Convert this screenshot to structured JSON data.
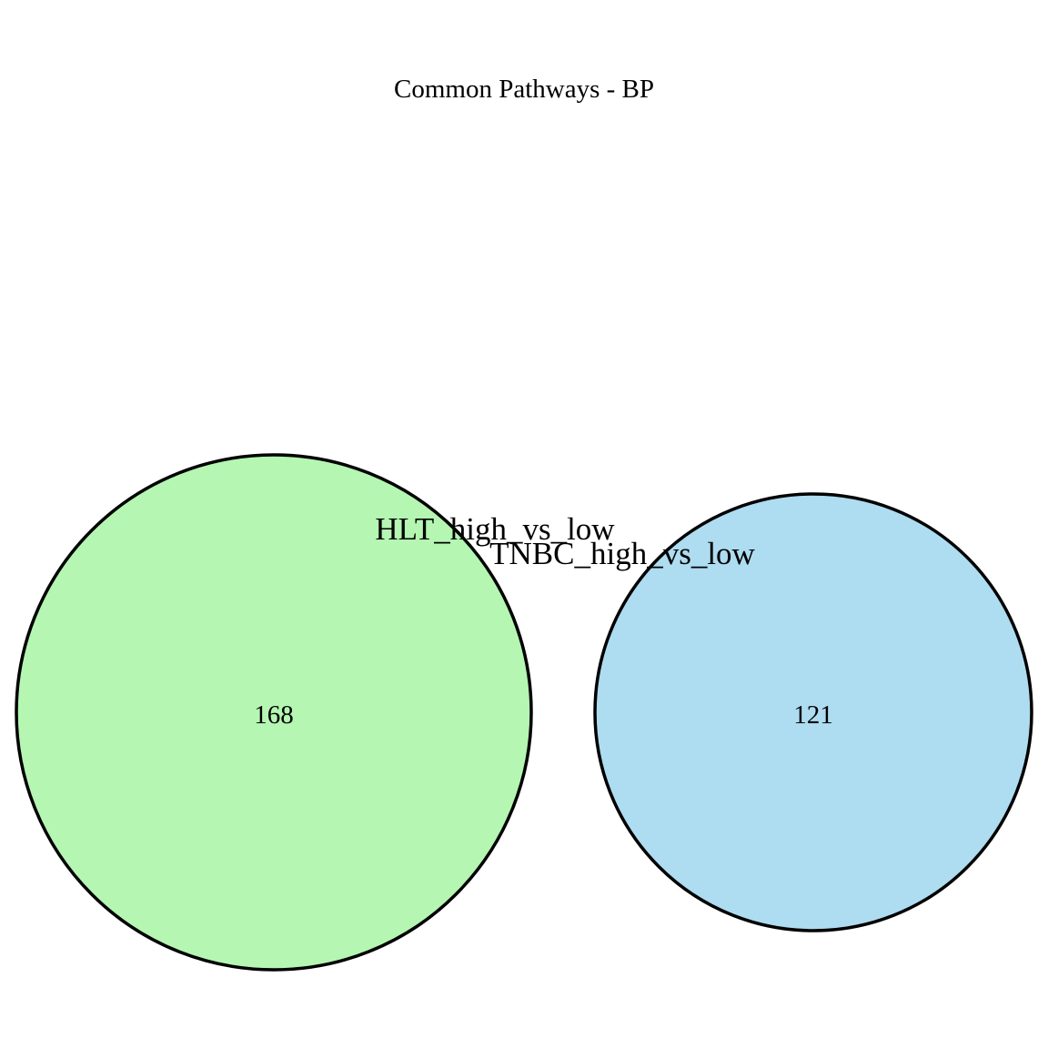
{
  "diagram": {
    "title": "Common Pathways - BP",
    "sets": [
      {
        "name": "HLT_high_vs_low",
        "count": "168",
        "fill": "#b4f6b2",
        "stroke": "#000000"
      },
      {
        "name": "TNBC_high_vs_low",
        "count": "121",
        "fill": "#aedcf0",
        "stroke": "#000000"
      }
    ]
  }
}
